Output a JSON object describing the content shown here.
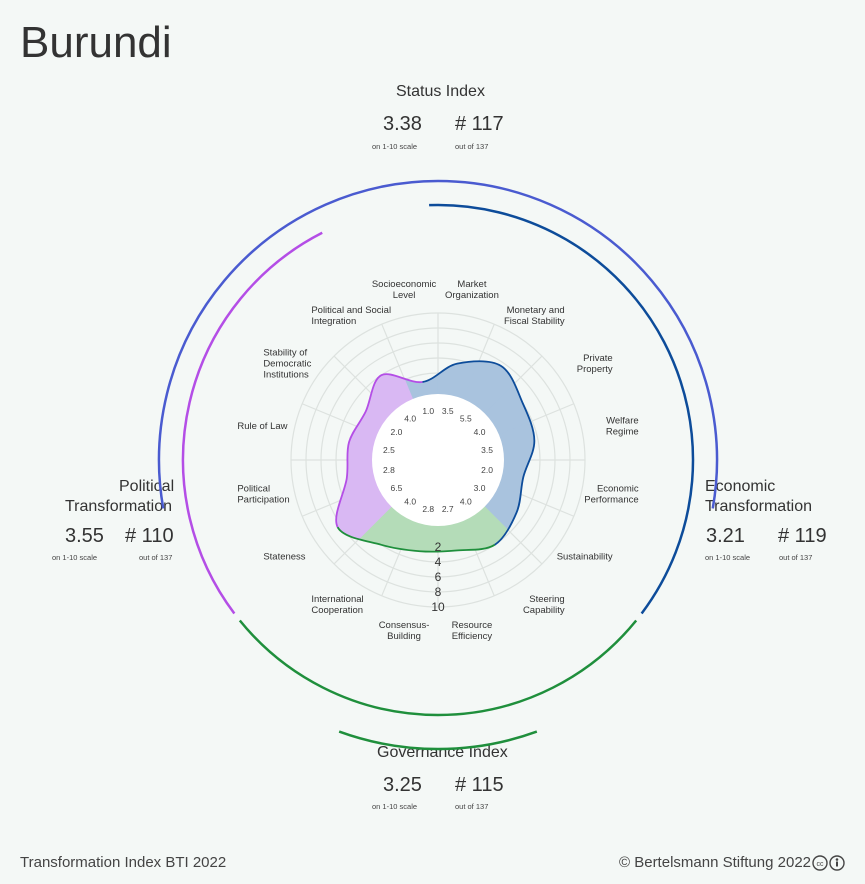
{
  "country": "Burundi",
  "footer": {
    "left": "Transformation Index BTI 2022",
    "right": "© Bertelsmann Stiftung 2022"
  },
  "indices": {
    "status": {
      "title": "Status Index",
      "score": "3.38",
      "rank": "# 117",
      "score_note": "on 1-10 scale",
      "rank_note": "out of 137"
    },
    "political": {
      "title_line1": "Political",
      "title_line2": "Transformation",
      "score": "3.55",
      "rank": "# 110",
      "score_note": "on 1-10 scale",
      "rank_note": "out of 137"
    },
    "economic": {
      "title_line1": "Economic",
      "title_line2": "Transformation",
      "score": "3.21",
      "rank": "# 119",
      "score_note": "on 1-10 scale",
      "rank_note": "out of 137"
    },
    "governance": {
      "title": "Governance Index",
      "score": "3.25",
      "rank": "# 115",
      "score_note": "on 1-10 scale",
      "rank_note": "out of 137"
    }
  },
  "colors": {
    "status_arc": "#4a5bd0",
    "political": "#b44ee6",
    "economic": "#0d4c9a",
    "governance": "#1f8f3c",
    "political_fill": "#d9b8f3",
    "economic_fill": "#a9c3de",
    "governance_fill": "#b4dcb8"
  },
  "chart_data": {
    "type": "radar",
    "r_range": [
      0,
      10
    ],
    "scale_ticks": [
      "2",
      "4",
      "6",
      "8",
      "10"
    ],
    "categories": [
      {
        "label": [
          "Market",
          "Organization"
        ],
        "value": 3.5,
        "group": "economic"
      },
      {
        "label": [
          "Monetary and",
          "Fiscal Stability"
        ],
        "value": 5.5,
        "group": "economic"
      },
      {
        "label": [
          "Private",
          "Property"
        ],
        "value": 4.0,
        "group": "economic"
      },
      {
        "label": [
          "Welfare",
          "Regime"
        ],
        "value": 3.5,
        "group": "economic"
      },
      {
        "label": [
          "Economic",
          "Performance"
        ],
        "value": 2.0,
        "group": "economic"
      },
      {
        "label": [
          "Sustainability"
        ],
        "value": 3.0,
        "group": "economic"
      },
      {
        "label": [
          "Steering",
          "Capability"
        ],
        "value": 4.0,
        "group": "governance"
      },
      {
        "label": [
          "Resource",
          "Efficiency"
        ],
        "value": 2.7,
        "group": "governance"
      },
      {
        "label": [
          "Consensus-",
          "Building"
        ],
        "value": 2.8,
        "group": "governance"
      },
      {
        "label": [
          "International",
          "Cooperation"
        ],
        "value": 4.0,
        "group": "governance"
      },
      {
        "label": [
          "Stateness"
        ],
        "value": 6.5,
        "group": "political"
      },
      {
        "label": [
          "Political",
          "Participation"
        ],
        "value": 2.8,
        "group": "political"
      },
      {
        "label": [
          "Rule of Law"
        ],
        "value": 2.5,
        "group": "political"
      },
      {
        "label": [
          "Stability of",
          "Democratic",
          "Institutions"
        ],
        "value": 2.0,
        "group": "political"
      },
      {
        "label": [
          "Political and Social",
          "Integration"
        ],
        "value": 4.0,
        "group": "political"
      },
      {
        "label": [
          "Socioeconomic",
          "Level"
        ],
        "value": 1.0,
        "group": "economic"
      }
    ]
  }
}
